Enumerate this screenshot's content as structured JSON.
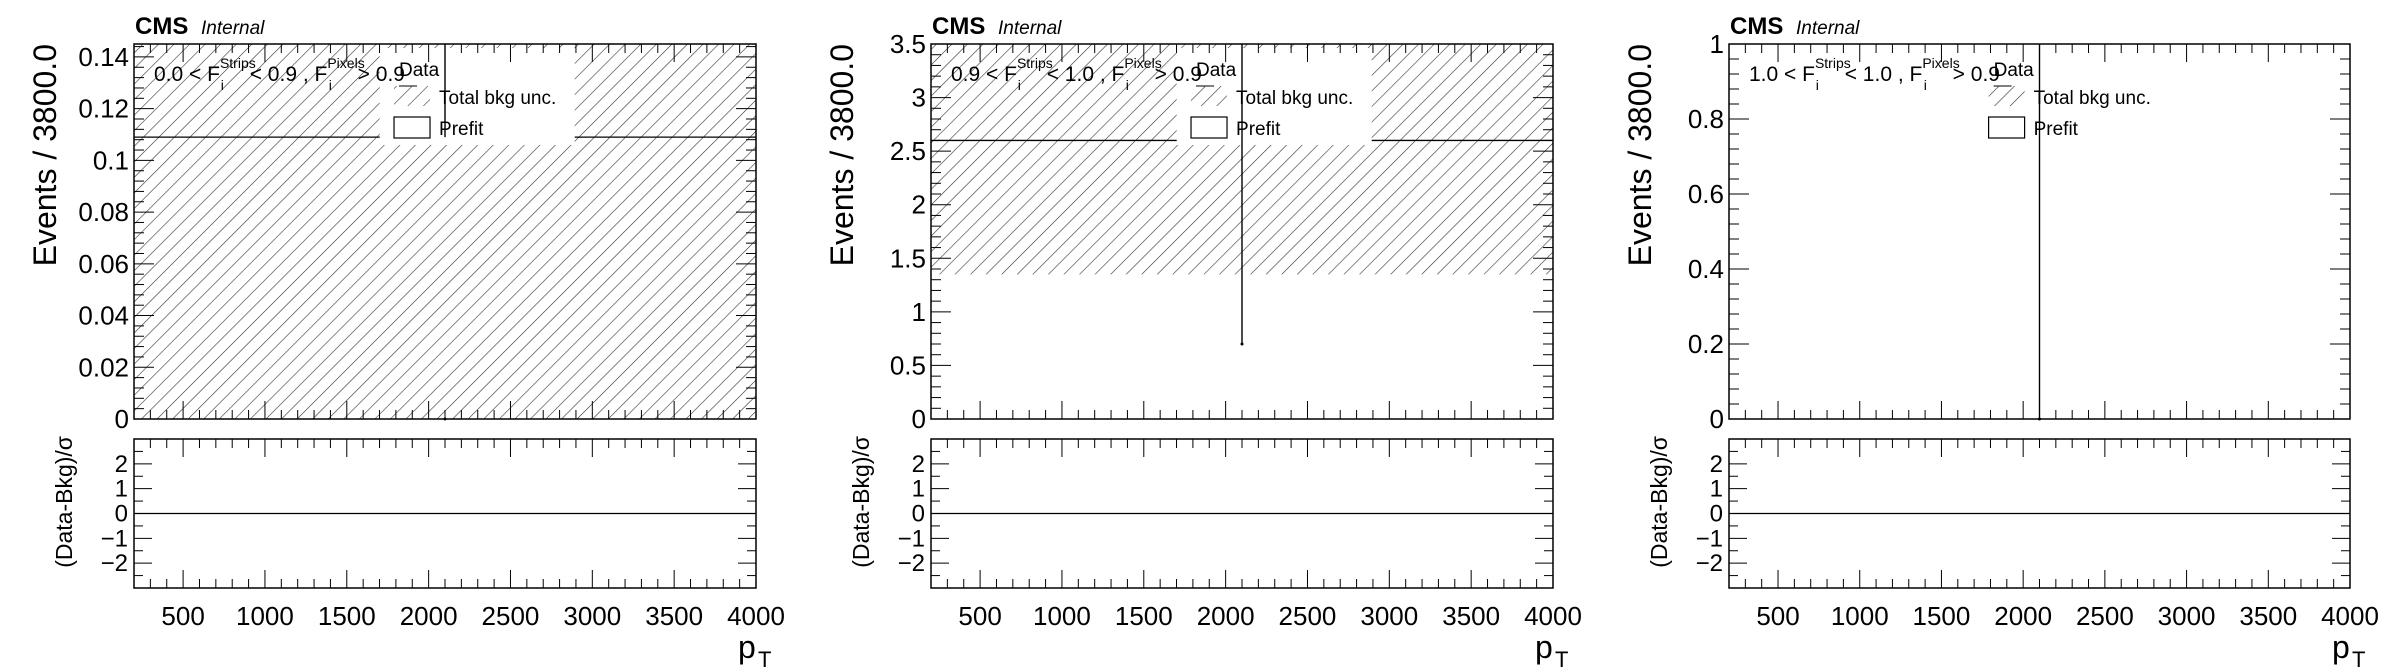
{
  "chart_data": [
    {
      "type": "bar",
      "label_main": "CMS",
      "label_sub": "Internal",
      "ylabel": "Events / 3800.0",
      "ratio_ylabel": "(Data-Bkg)/σ",
      "xlabel": "p",
      "xlabel_sub": "T",
      "xlim": [
        200,
        4000
      ],
      "ylim": [
        0,
        0.145
      ],
      "yticks": [
        "0",
        "0.02",
        "0.04",
        "0.06",
        "0.08",
        "0.1",
        "0.12",
        "0.14"
      ],
      "ratio_ylim": [
        -3,
        3
      ],
      "ratio_yticks": [
        "-2",
        "-1",
        "0",
        "1",
        "2"
      ],
      "xticks": [
        "500",
        "1000",
        "1500",
        "2000",
        "2500",
        "3000",
        "3500",
        "4000"
      ],
      "category_text": {
        "a": "0.0 < F",
        "a_sup": "Strips",
        "a_sub": "i",
        "b": " < 0.9 , F",
        "b_sup": "Pixels",
        "b_sub": "i",
        "c": " > 0.9"
      },
      "legend": {
        "data": "Data",
        "unc": "Total bkg unc.",
        "prefit": "Prefit"
      },
      "bin": [
        200,
        4000
      ],
      "prefit": 0.109,
      "unc": [
        0,
        0.145
      ],
      "data": {
        "x": 2100,
        "y": 0.0,
        "yerr": [
          0.109,
          0.145
        ]
      },
      "ratio": 0
    },
    {
      "type": "bar",
      "label_main": "CMS",
      "label_sub": "Internal",
      "ylabel": "Events / 3800.0",
      "ratio_ylabel": "(Data-Bkg)/σ",
      "xlabel": "p",
      "xlabel_sub": "T",
      "xlim": [
        200,
        4000
      ],
      "ylim": [
        0,
        3.5
      ],
      "yticks": [
        "0",
        "0.5",
        "1",
        "1.5",
        "2",
        "2.5",
        "3",
        "3.5"
      ],
      "ratio_ylim": [
        -3,
        3
      ],
      "ratio_yticks": [
        "-2",
        "-1",
        "0",
        "1",
        "2"
      ],
      "xticks": [
        "500",
        "1000",
        "1500",
        "2000",
        "2500",
        "3000",
        "3500",
        "4000"
      ],
      "category_text": {
        "a": "0.9 < F",
        "a_sup": "Strips",
        "a_sub": "i",
        "b": " < 1.0 , F",
        "b_sup": "Pixels",
        "b_sub": "i",
        "c": " > 0.9"
      },
      "legend": {
        "data": "Data",
        "unc": "Total bkg unc.",
        "prefit": "Prefit"
      },
      "bin": [
        200,
        4000
      ],
      "prefit": 2.6,
      "unc": [
        1.35,
        3.5
      ],
      "data": {
        "x": 2100,
        "y": 0.7,
        "yerr": [
          0.7,
          3.5
        ]
      },
      "ratio": 0
    },
    {
      "type": "bar",
      "label_main": "CMS",
      "label_sub": "Internal",
      "ylabel": "Events / 3800.0",
      "ratio_ylabel": "(Data-Bkg)/σ",
      "xlabel": "p",
      "xlabel_sub": "T",
      "xlim": [
        200,
        4000
      ],
      "ylim": [
        0,
        1
      ],
      "yticks": [
        "0",
        "0.2",
        "0.4",
        "0.6",
        "0.8",
        "1"
      ],
      "ratio_ylim": [
        -3,
        3
      ],
      "ratio_yticks": [
        "-2",
        "-1",
        "0",
        "1",
        "2"
      ],
      "xticks": [
        "500",
        "1000",
        "1500",
        "2000",
        "2500",
        "3000",
        "3500",
        "4000"
      ],
      "category_text": {
        "a": "1.0 < F",
        "a_sup": "Strips",
        "a_sub": "i",
        "b": " < 1.0 , F",
        "b_sup": "Pixels",
        "b_sub": "i",
        "c": " > 0.9"
      },
      "legend": {
        "data": "Data",
        "unc": "Total bkg unc.",
        "prefit": "Prefit"
      },
      "bin": [
        200,
        4000
      ],
      "prefit": null,
      "unc": null,
      "data": {
        "x": 2100,
        "y": 0.0,
        "yerr": [
          0.0,
          1.0
        ]
      },
      "ratio": 0
    }
  ]
}
